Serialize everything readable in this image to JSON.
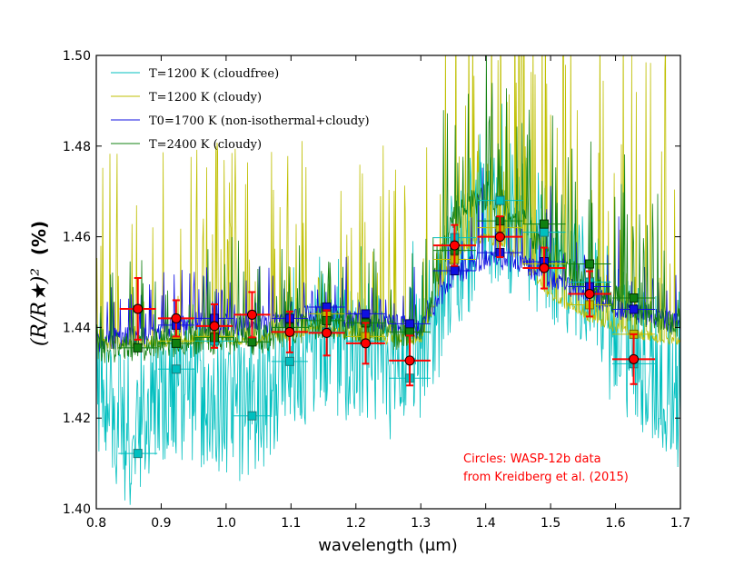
{
  "chart_data": {
    "type": "line",
    "title": "",
    "xlabel": "wavelength (μm)",
    "ylabel_main": "(R/R★)²",
    "ylabel_unit": "(%)",
    "xlim": [
      0.8,
      1.7
    ],
    "ylim": [
      1.4,
      1.5
    ],
    "xticks": [
      0.8,
      0.9,
      1.0,
      1.1,
      1.2,
      1.3,
      1.4,
      1.5,
      1.6,
      1.7
    ],
    "xtick_labels": [
      "0.8",
      "0.9",
      "1.0",
      "1.1",
      "1.2",
      "1.3",
      "1.4",
      "1.5",
      "1.6",
      "1.7"
    ],
    "yticks": [
      1.4,
      1.42,
      1.44,
      1.46,
      1.48,
      1.5
    ],
    "ytick_labels": [
      "1.40",
      "1.42",
      "1.44",
      "1.46",
      "1.48",
      "1.50"
    ],
    "grid": false,
    "legend_position": "top-left",
    "series": [
      {
        "name": "T=1200 K (cloudfree)",
        "color": "#00bfbf",
        "x": [
          0.8,
          0.85,
          0.9,
          0.95,
          1.0,
          1.05,
          1.1,
          1.15,
          1.2,
          1.25,
          1.3,
          1.35,
          1.4,
          1.45,
          1.5,
          1.55,
          1.6,
          1.65,
          1.7
        ],
        "y": [
          1.427,
          1.416,
          1.425,
          1.426,
          1.421,
          1.423,
          1.432,
          1.436,
          1.434,
          1.431,
          1.435,
          1.452,
          1.464,
          1.462,
          1.456,
          1.449,
          1.438,
          1.431,
          1.424
        ],
        "noise": 0.016,
        "spikes_up": 0.01,
        "seed": 11,
        "marker_color": "#00bfbf",
        "marker_edge": "#1a7a7a",
        "points": [
          {
            "x": 0.864,
            "y": 1.4122,
            "xerr": 0.03
          },
          {
            "x": 0.923,
            "y": 1.4308,
            "xerr": 0.028
          },
          {
            "x": 0.982,
            "y": 1.437,
            "xerr": 0.03
          },
          {
            "x": 1.04,
            "y": 1.4205,
            "xerr": 0.028
          },
          {
            "x": 1.098,
            "y": 1.4325,
            "xerr": 0.028
          },
          {
            "x": 1.155,
            "y": 1.439,
            "xerr": 0.028
          },
          {
            "x": 1.215,
            "y": 1.437,
            "xerr": 0.03
          },
          {
            "x": 1.283,
            "y": 1.4288,
            "xerr": 0.032
          },
          {
            "x": 1.352,
            "y": 1.4598,
            "xerr": 0.033
          },
          {
            "x": 1.422,
            "y": 1.468,
            "xerr": 0.035
          },
          {
            "x": 1.49,
            "y": 1.461,
            "xerr": 0.033
          },
          {
            "x": 1.56,
            "y": 1.45,
            "xerr": 0.033
          },
          {
            "x": 1.628,
            "y": 1.432,
            "xerr": 0.033
          }
        ]
      },
      {
        "name": "T=1200 K (cloudy)",
        "color": "#bfbf00",
        "x": [
          0.8,
          0.85,
          0.9,
          0.95,
          1.0,
          1.05,
          1.1,
          1.15,
          1.2,
          1.25,
          1.3,
          1.35,
          1.4,
          1.45,
          1.5,
          1.55,
          1.6,
          1.65,
          1.7
        ],
        "y": [
          1.4362,
          1.4365,
          1.4368,
          1.4372,
          1.4372,
          1.4372,
          1.4385,
          1.4395,
          1.438,
          1.4375,
          1.4375,
          1.456,
          1.46,
          1.456,
          1.447,
          1.443,
          1.44,
          1.438,
          1.437
        ],
        "noise": 0.0012,
        "spikes_up": 0.045,
        "seed": 23,
        "marker_color": "#bfbf00",
        "marker_edge": "#6b6b00",
        "points": [
          {
            "x": 0.923,
            "y": 1.437,
            "xerr": 0.028
          },
          {
            "x": 0.982,
            "y": 1.438,
            "xerr": 0.03
          },
          {
            "x": 1.098,
            "y": 1.439,
            "xerr": 0.028
          },
          {
            "x": 1.155,
            "y": 1.443,
            "xerr": 0.028
          },
          {
            "x": 1.215,
            "y": 1.438,
            "xerr": 0.03
          },
          {
            "x": 1.352,
            "y": 1.455,
            "xerr": 0.033
          },
          {
            "x": 1.422,
            "y": 1.462,
            "xerr": 0.035
          },
          {
            "x": 1.49,
            "y": 1.454,
            "xerr": 0.033
          },
          {
            "x": 1.56,
            "y": 1.445,
            "xerr": 0.033
          },
          {
            "x": 1.628,
            "y": 1.4385,
            "xerr": 0.033
          }
        ]
      },
      {
        "name": "T0=1700 K (non-isothermal+cloudy)",
        "color": "#1010e0",
        "x": [
          0.8,
          0.85,
          0.9,
          0.95,
          1.0,
          1.05,
          1.1,
          1.15,
          1.2,
          1.25,
          1.3,
          1.35,
          1.4,
          1.45,
          1.5,
          1.55,
          1.6,
          1.65,
          1.7
        ],
        "y": [
          1.437,
          1.438,
          1.4395,
          1.441,
          1.4405,
          1.44,
          1.442,
          1.443,
          1.442,
          1.4405,
          1.44,
          1.451,
          1.4555,
          1.454,
          1.451,
          1.4475,
          1.4445,
          1.4425,
          1.4405
        ],
        "noise": 0.0025,
        "spikes_up": 0.012,
        "seed": 37,
        "marker_color": "#1010e0",
        "marker_edge": "#000060",
        "points": [
          {
            "x": 0.923,
            "y": 1.4405,
            "xerr": 0.028
          },
          {
            "x": 0.982,
            "y": 1.442,
            "xerr": 0.03
          },
          {
            "x": 1.098,
            "y": 1.442,
            "xerr": 0.028
          },
          {
            "x": 1.155,
            "y": 1.4445,
            "xerr": 0.028
          },
          {
            "x": 1.215,
            "y": 1.443,
            "xerr": 0.03
          },
          {
            "x": 1.283,
            "y": 1.4408,
            "xerr": 0.032
          },
          {
            "x": 1.352,
            "y": 1.4525,
            "xerr": 0.033
          },
          {
            "x": 1.422,
            "y": 1.4565,
            "xerr": 0.035
          },
          {
            "x": 1.49,
            "y": 1.4545,
            "xerr": 0.033
          },
          {
            "x": 1.56,
            "y": 1.449,
            "xerr": 0.033
          },
          {
            "x": 1.628,
            "y": 1.444,
            "xerr": 0.033
          }
        ]
      },
      {
        "name": "T=2400 K (cloudy)",
        "color": "#108010",
        "x": [
          0.8,
          0.85,
          0.9,
          0.95,
          1.0,
          1.05,
          1.1,
          1.15,
          1.2,
          1.25,
          1.3,
          1.35,
          1.4,
          1.45,
          1.5,
          1.55,
          1.6,
          1.65,
          1.7
        ],
        "y": [
          1.4355,
          1.4358,
          1.4365,
          1.437,
          1.4375,
          1.4372,
          1.4395,
          1.441,
          1.44,
          1.4385,
          1.4385,
          1.464,
          1.469,
          1.464,
          1.456,
          1.45,
          1.446,
          1.443,
          1.44
        ],
        "noise": 0.0035,
        "spikes_up": 0.02,
        "seed": 51,
        "marker_color": "#108010",
        "marker_edge": "#003000",
        "points": [
          {
            "x": 0.864,
            "y": 1.4355,
            "xerr": 0.03
          },
          {
            "x": 0.923,
            "y": 1.4365,
            "xerr": 0.028
          },
          {
            "x": 0.982,
            "y": 1.4378,
            "xerr": 0.03
          },
          {
            "x": 1.04,
            "y": 1.4368,
            "xerr": 0.028
          },
          {
            "x": 1.098,
            "y": 1.44,
            "xerr": 0.028
          },
          {
            "x": 1.155,
            "y": 1.4415,
            "xerr": 0.028
          },
          {
            "x": 1.215,
            "y": 1.441,
            "xerr": 0.03
          },
          {
            "x": 1.283,
            "y": 1.439,
            "xerr": 0.032
          },
          {
            "x": 1.352,
            "y": 1.457,
            "xerr": 0.033
          },
          {
            "x": 1.422,
            "y": 1.4635,
            "xerr": 0.035
          },
          {
            "x": 1.49,
            "y": 1.4628,
            "xerr": 0.033
          },
          {
            "x": 1.56,
            "y": 1.454,
            "xerr": 0.033
          },
          {
            "x": 1.628,
            "y": 1.4465,
            "xerr": 0.033
          }
        ]
      }
    ],
    "observations": {
      "name": "WASP-12b data (Kreidberg et al. 2015)",
      "marker_color": "#ff0000",
      "errorbar_color": "#ff0000",
      "points": [
        {
          "x": 0.864,
          "y": 1.4441,
          "xerr": 0.028,
          "yerr": 0.0068
        },
        {
          "x": 0.923,
          "y": 1.442,
          "xerr": 0.028,
          "yerr": 0.004
        },
        {
          "x": 0.982,
          "y": 1.4403,
          "xerr": 0.028,
          "yerr": 0.0048
        },
        {
          "x": 1.04,
          "y": 1.4428,
          "xerr": 0.028,
          "yerr": 0.005
        },
        {
          "x": 1.098,
          "y": 1.439,
          "xerr": 0.028,
          "yerr": 0.0045
        },
        {
          "x": 1.155,
          "y": 1.4388,
          "xerr": 0.028,
          "yerr": 0.005
        },
        {
          "x": 1.215,
          "y": 1.4365,
          "xerr": 0.03,
          "yerr": 0.0045
        },
        {
          "x": 1.283,
          "y": 1.4327,
          "xerr": 0.032,
          "yerr": 0.0055
        },
        {
          "x": 1.352,
          "y": 1.4581,
          "xerr": 0.033,
          "yerr": 0.0045
        },
        {
          "x": 1.422,
          "y": 1.46,
          "xerr": 0.035,
          "yerr": 0.0045
        },
        {
          "x": 1.49,
          "y": 1.4531,
          "xerr": 0.033,
          "yerr": 0.0045
        },
        {
          "x": 1.56,
          "y": 1.4474,
          "xerr": 0.033,
          "yerr": 0.005
        },
        {
          "x": 1.628,
          "y": 1.433,
          "xerr": 0.033,
          "yerr": 0.0055
        }
      ]
    },
    "legend": [
      {
        "label": "T=1200 K (cloudfree)",
        "color": "#00bfbf"
      },
      {
        "label": "T=1200 K (cloudy)",
        "color": "#bfbf00"
      },
      {
        "label": "T0=1700 K (non-isothermal+cloudy)",
        "color": "#1010e0"
      },
      {
        "label": "T=2400 K (cloudy)",
        "color": "#108010"
      }
    ],
    "annotation": {
      "line1": "Circles: WASP-12b data",
      "line2": "from Kreidberg et al. (2015)",
      "color": "#ff0000"
    }
  }
}
